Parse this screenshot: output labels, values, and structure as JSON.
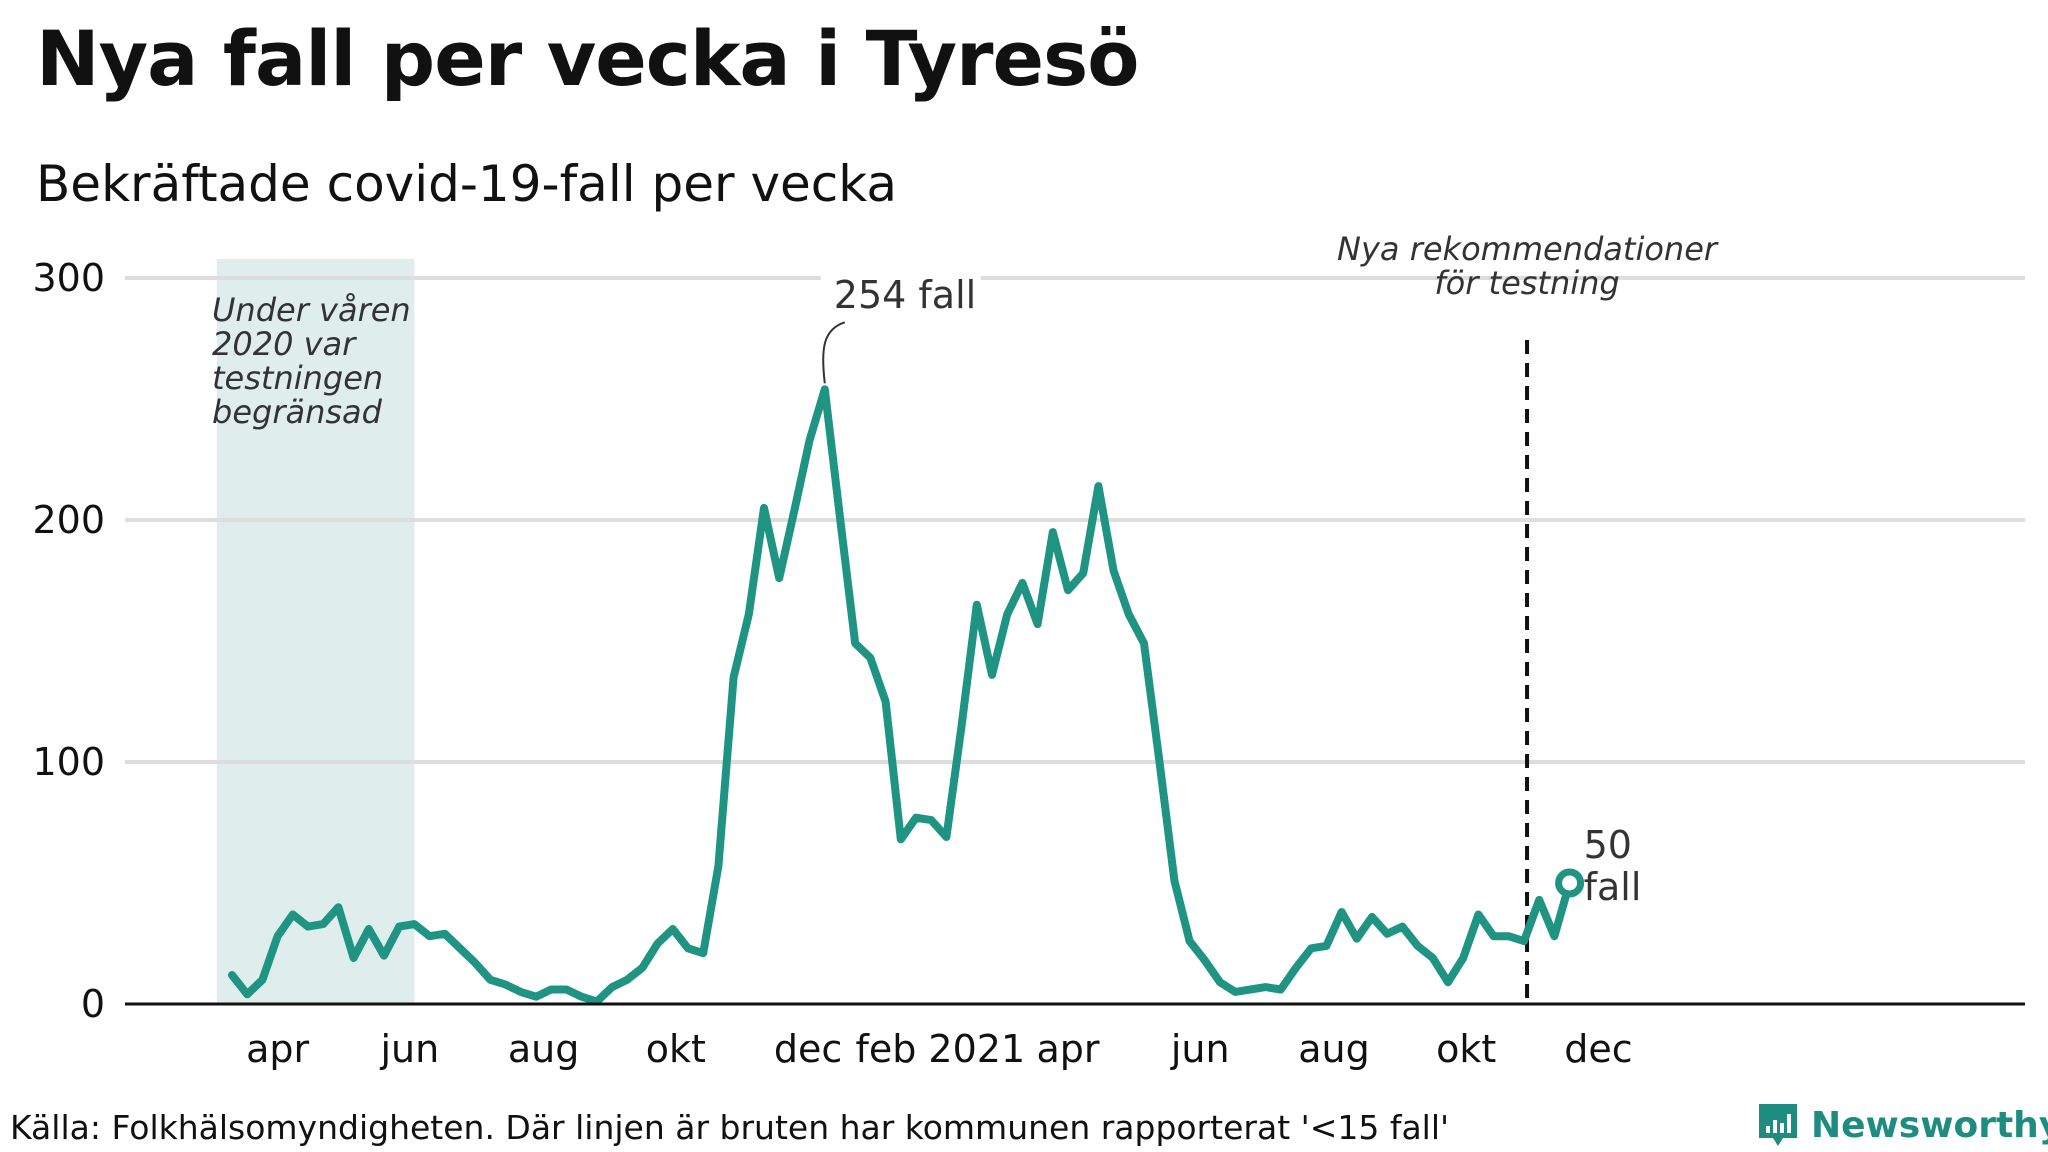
{
  "header": {
    "title": "Nya fall per vecka i Tyresö",
    "subtitle": "Bekräftade covid-19-fall per vecka"
  },
  "footer": {
    "source": "Källa: Folkhälsomyndigheten. Där linjen är bruten har kommunen rapporterat '<15 fall'",
    "brand": "Newsworthy"
  },
  "colors": {
    "line": "#1f9482",
    "shade": "#dfeeed",
    "grid": "#dddddd",
    "axis": "#111111",
    "brand": "#1f8c82"
  },
  "chart_data": {
    "type": "line",
    "title": "Nya fall per vecka i Tyresö",
    "subtitle": "Bekräftade covid-19-fall per vecka",
    "ylim": [
      0,
      300
    ],
    "y_ticks": [
      0,
      100,
      200,
      300
    ],
    "grid": true,
    "x_ticks": [
      {
        "label": "apr",
        "week": 3.0
      },
      {
        "label": "jun",
        "week": 11.7
      },
      {
        "label": "aug",
        "week": 20.5
      },
      {
        "label": "okt",
        "week": 29.2
      },
      {
        "label": "dec",
        "week": 37.9
      },
      {
        "label": "feb 2021",
        "week": 46.6
      },
      {
        "label": "apr",
        "week": 55.0
      },
      {
        "label": "jun",
        "week": 63.7
      },
      {
        "label": "aug",
        "week": 72.5
      },
      {
        "label": "okt",
        "week": 81.2
      },
      {
        "label": "dec",
        "week": 89.9
      }
    ],
    "series": [
      {
        "values": [
          12,
          4,
          10,
          28,
          37,
          32,
          33,
          40,
          19,
          31,
          20,
          32,
          33,
          28,
          29,
          23,
          17,
          10,
          8,
          5,
          3,
          6,
          6,
          3,
          1,
          7,
          10,
          15,
          25,
          31,
          23,
          21,
          57,
          135,
          161,
          205,
          176,
          204,
          233,
          254,
          201,
          149,
          143,
          125,
          68,
          77,
          76,
          69,
          115,
          165,
          136,
          161,
          174,
          157,
          195,
          171,
          178,
          214,
          179,
          161,
          149,
          101,
          51,
          26,
          18,
          9,
          5,
          6,
          7,
          6,
          15,
          23,
          24,
          38,
          27,
          36,
          29,
          32,
          24,
          19,
          9,
          19,
          37,
          28,
          28,
          26,
          43,
          28,
          50
        ]
      }
    ],
    "shaded_region": {
      "from_week": -1,
      "to_week": 12
    },
    "annotations": {
      "shaded_text": [
        "Under våren",
        "2020 var",
        "testningen",
        "begränsad"
      ],
      "peak_label": "254 fall",
      "peak_week": 39,
      "end_label": [
        "50",
        "fall"
      ],
      "vline_text": [
        "Nya rekommendationer",
        "för testning"
      ],
      "vline_week": 85.2
    }
  }
}
